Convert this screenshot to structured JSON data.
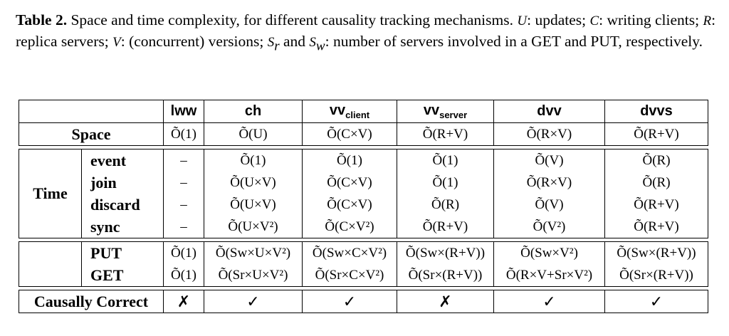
{
  "caption": {
    "label": "Table 2.",
    "segments": [
      " Space and time complexity, for different causality tracking mechanisms. ",
      "U",
      ": updates; ",
      "C",
      ": writing clients; ",
      "R",
      ": replica servers; ",
      "V",
      ": (concurrent) versions; ",
      "S",
      "r",
      " and ",
      "S",
      "w",
      ": number of servers involved in a GET and PUT, respectively."
    ]
  },
  "table": {
    "columns": {
      "lww": "lww",
      "ch": "ch",
      "vv": "vv",
      "client": "client",
      "server": "server",
      "dvv": "dvv",
      "dvvs": "dvvs"
    },
    "row_labels": {
      "space": "Space",
      "time": "Time",
      "event": "event",
      "join": "join",
      "discard": "discard",
      "sync": "sync",
      "put": "PUT",
      "get": "GET",
      "causal": "Causally Correct"
    },
    "space": [
      "Õ(1)",
      "Õ(U)",
      "Õ(C×V)",
      "Õ(R+V)",
      "Õ(R×V)",
      "Õ(R+V)"
    ],
    "event": [
      "–",
      "Õ(1)",
      "Õ(1)",
      "Õ(1)",
      "Õ(V)",
      "Õ(R)"
    ],
    "join": [
      "–",
      "Õ(U×V)",
      "Õ(C×V)",
      "Õ(1)",
      "Õ(R×V)",
      "Õ(R)"
    ],
    "discard": [
      "–",
      "Õ(U×V)",
      "Õ(C×V)",
      "Õ(R)",
      "Õ(V)",
      "Õ(R+V)"
    ],
    "sync": [
      "–",
      "Õ(U×V²)",
      "Õ(C×V²)",
      "Õ(R+V)",
      "Õ(V²)",
      "Õ(R+V)"
    ],
    "put": [
      "Õ(1)",
      "Õ(Sw×U×V²)",
      "Õ(Sw×C×V²)",
      "Õ(Sw×(R+V))",
      "Õ(Sw×V²)",
      "Õ(Sw×(R+V))"
    ],
    "get": [
      "Õ(1)",
      "Õ(Sr×U×V²)",
      "Õ(Sr×C×V²)",
      "Õ(Sr×(R+V))",
      "Õ(R×V+Sr×V²)",
      "Õ(Sr×(R+V))"
    ],
    "causal": [
      "✗",
      "✓",
      "✓",
      "✗",
      "✓",
      "✓"
    ]
  }
}
